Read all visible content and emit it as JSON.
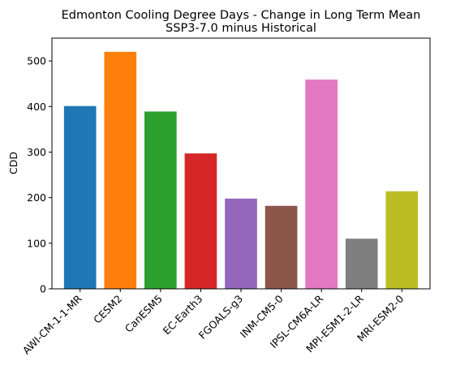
{
  "chart_data": {
    "type": "bar",
    "title": "Edmonton Cooling Degree Days - Change in Long Term Mean",
    "subtitle": "SSP3-7.0 minus Historical",
    "xlabel": "",
    "ylabel": "CDD",
    "ylim": [
      0,
      550
    ],
    "yticks": [
      0,
      100,
      200,
      300,
      400,
      500
    ],
    "grid": false,
    "categories": [
      "AWI-CM-1-1-MR",
      "CESM2",
      "CanESM5",
      "EC-Earth3",
      "FGOALS-g3",
      "INM-CM5-0",
      "IPSL-CM6A-LR",
      "MPI-ESM1-2-LR",
      "MRI-ESM2-0"
    ],
    "values": [
      401,
      520,
      389,
      297,
      198,
      182,
      459,
      110,
      214
    ],
    "colors": [
      "#1f77b4",
      "#ff7f0e",
      "#2ca02c",
      "#d62728",
      "#9467bd",
      "#8c564b",
      "#e377c2",
      "#7f7f7f",
      "#bcbd22"
    ]
  }
}
